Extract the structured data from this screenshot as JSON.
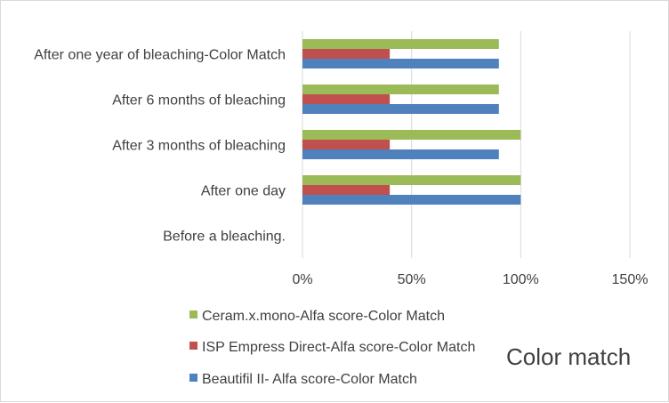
{
  "chart_data": {
    "type": "bar",
    "orientation": "horizontal",
    "title": "Color match",
    "categories": [
      "Before a bleaching.",
      "After one day",
      "After 3 months of bleaching",
      "After 6 months of bleaching",
      "After one year of bleaching-Color Match"
    ],
    "series": [
      {
        "name": "Beautifil II- Alfa score-Color Match",
        "color": "#4f81bd",
        "values": [
          0,
          100,
          90,
          90,
          90
        ]
      },
      {
        "name": "ISP Empress Direct-Alfa score-Color Match",
        "color": "#c0504d",
        "values": [
          0,
          40,
          40,
          40,
          40
        ]
      },
      {
        "name": "Ceram.x.mono-Alfa score-Color Match",
        "color": "#9bbb59",
        "values": [
          0,
          100,
          100,
          90,
          90
        ]
      }
    ],
    "xlim": [
      0,
      150
    ],
    "x_ticks": [
      "0%",
      "50%",
      "100%",
      "150%"
    ],
    "x_tick_values": [
      0,
      50,
      100,
      150
    ],
    "grid": true,
    "legend_position": "bottom-left"
  }
}
